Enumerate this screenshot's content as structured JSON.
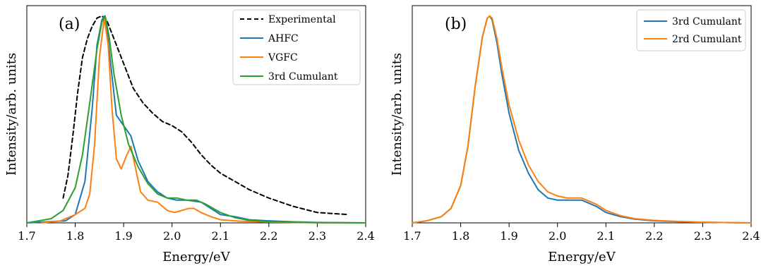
{
  "chart_data": [
    {
      "type": "line",
      "panel_label": "(a)",
      "xlabel": "Energy/eV",
      "ylabel": "Intensity/arb. units",
      "xlim": [
        1.7,
        2.4
      ],
      "ylim": [
        0,
        1.05
      ],
      "xticks": [
        1.7,
        1.8,
        1.9,
        2.0,
        2.1,
        2.2,
        2.3,
        2.4
      ],
      "xtick_labels": [
        "1.7",
        "1.8",
        "1.9",
        "2.0",
        "2.1",
        "2.2",
        "2.3",
        "2.4"
      ],
      "show_yticks": false,
      "grid": false,
      "legend_position": "top-right",
      "series": [
        {
          "name": "Experimental",
          "color": "#000000",
          "dash": "6 4",
          "x": [
            1.775,
            1.785,
            1.795,
            1.805,
            1.815,
            1.825,
            1.835,
            1.845,
            1.855,
            1.865,
            1.875,
            1.885,
            1.9,
            1.92,
            1.94,
            1.96,
            1.98,
            2.0,
            2.02,
            2.04,
            2.06,
            2.08,
            2.1,
            2.13,
            2.16,
            2.2,
            2.25,
            2.3,
            2.365
          ],
          "y": [
            0.12,
            0.23,
            0.42,
            0.63,
            0.8,
            0.89,
            0.95,
            0.99,
            1.0,
            0.98,
            0.92,
            0.86,
            0.77,
            0.65,
            0.58,
            0.53,
            0.49,
            0.47,
            0.44,
            0.39,
            0.33,
            0.28,
            0.24,
            0.2,
            0.16,
            0.12,
            0.08,
            0.05,
            0.04
          ]
        },
        {
          "name": "AHFC",
          "color": "#1f77b4",
          "x": [
            1.7,
            1.78,
            1.8,
            1.82,
            1.835,
            1.845,
            1.855,
            1.86,
            1.865,
            1.875,
            1.885,
            1.9,
            1.915,
            1.93,
            1.95,
            1.97,
            1.99,
            2.01,
            2.03,
            2.06,
            2.08,
            2.1,
            2.13,
            2.16,
            2.2,
            2.25,
            2.3,
            2.4
          ],
          "y": [
            0.0,
            0.01,
            0.04,
            0.2,
            0.55,
            0.86,
            0.98,
            1.0,
            0.95,
            0.73,
            0.52,
            0.47,
            0.42,
            0.3,
            0.2,
            0.15,
            0.12,
            0.11,
            0.11,
            0.1,
            0.07,
            0.04,
            0.03,
            0.015,
            0.01,
            0.005,
            0.002,
            0.0
          ]
        },
        {
          "name": "VGFC",
          "color": "#ff7f0e",
          "x": [
            1.73,
            1.77,
            1.8,
            1.82,
            1.83,
            1.84,
            1.85,
            1.86,
            1.868,
            1.876,
            1.885,
            1.895,
            1.905,
            1.915,
            1.925,
            1.935,
            1.95,
            1.97,
            1.99,
            2.005,
            2.02,
            2.035,
            2.045,
            2.06,
            2.08,
            2.1,
            2.14,
            2.2,
            2.3,
            2.4
          ],
          "y": [
            0.0,
            0.01,
            0.04,
            0.07,
            0.14,
            0.38,
            0.8,
            0.99,
            0.86,
            0.55,
            0.31,
            0.26,
            0.32,
            0.37,
            0.26,
            0.15,
            0.11,
            0.1,
            0.06,
            0.05,
            0.06,
            0.07,
            0.07,
            0.05,
            0.03,
            0.015,
            0.008,
            0.004,
            0.001,
            0.0
          ]
        },
        {
          "name": "3rd Cumulant",
          "color": "#2ca02c",
          "x": [
            1.7,
            1.75,
            1.775,
            1.8,
            1.815,
            1.83,
            1.845,
            1.855,
            1.862,
            1.87,
            1.88,
            1.895,
            1.91,
            1.93,
            1.95,
            1.97,
            1.99,
            2.01,
            2.03,
            2.05,
            2.07,
            2.1,
            2.13,
            2.16,
            2.2,
            2.25,
            2.3,
            2.4
          ],
          "y": [
            0.0,
            0.02,
            0.06,
            0.17,
            0.33,
            0.58,
            0.84,
            0.97,
            1.0,
            0.9,
            0.72,
            0.52,
            0.38,
            0.27,
            0.19,
            0.14,
            0.12,
            0.12,
            0.11,
            0.11,
            0.09,
            0.05,
            0.025,
            0.012,
            0.006,
            0.003,
            0.001,
            0.0
          ]
        }
      ]
    },
    {
      "type": "line",
      "panel_label": "(b)",
      "xlabel": "Energy/eV",
      "ylabel": "Intensity/arb. units",
      "xlim": [
        1.7,
        2.4
      ],
      "ylim": [
        0,
        1.05
      ],
      "xticks": [
        1.7,
        1.8,
        1.9,
        2.0,
        2.1,
        2.2,
        2.3,
        2.4
      ],
      "xtick_labels": [
        "1.7",
        "1.8",
        "1.9",
        "2.0",
        "2.1",
        "2.2",
        "2.3",
        "2.4"
      ],
      "show_yticks": false,
      "grid": false,
      "legend_position": "top-right",
      "series": [
        {
          "name": "3rd Cumulant",
          "color": "#1f77b4",
          "x": [
            1.7,
            1.73,
            1.76,
            1.78,
            1.8,
            1.815,
            1.83,
            1.845,
            1.855,
            1.86,
            1.865,
            1.875,
            1.885,
            1.9,
            1.92,
            1.94,
            1.96,
            1.98,
            2.0,
            2.02,
            2.05,
            2.08,
            2.1,
            2.13,
            2.16,
            2.2,
            2.25,
            2.3,
            2.4
          ],
          "y": [
            0.0,
            0.01,
            0.03,
            0.07,
            0.18,
            0.37,
            0.66,
            0.9,
            0.99,
            1.0,
            0.98,
            0.87,
            0.72,
            0.53,
            0.35,
            0.24,
            0.16,
            0.12,
            0.11,
            0.11,
            0.11,
            0.08,
            0.05,
            0.03,
            0.018,
            0.01,
            0.006,
            0.003,
            0.0
          ]
        },
        {
          "name": "2rd Cumulant",
          "color": "#ff7f0e",
          "x": [
            1.7,
            1.73,
            1.76,
            1.78,
            1.8,
            1.815,
            1.83,
            1.845,
            1.855,
            1.86,
            1.865,
            1.875,
            1.885,
            1.9,
            1.92,
            1.94,
            1.96,
            1.98,
            2.0,
            2.02,
            2.05,
            2.08,
            2.1,
            2.13,
            2.16,
            2.2,
            2.25,
            2.3,
            2.4
          ],
          "y": [
            0.0,
            0.01,
            0.03,
            0.07,
            0.18,
            0.37,
            0.66,
            0.9,
            0.99,
            1.0,
            0.99,
            0.89,
            0.75,
            0.57,
            0.4,
            0.28,
            0.2,
            0.15,
            0.13,
            0.12,
            0.12,
            0.09,
            0.06,
            0.035,
            0.02,
            0.012,
            0.007,
            0.003,
            0.0
          ]
        }
      ]
    }
  ]
}
